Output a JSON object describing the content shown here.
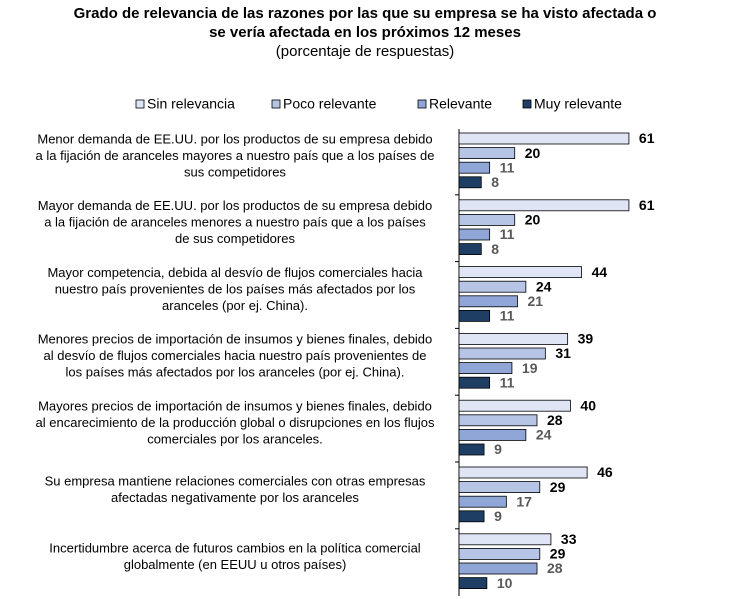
{
  "chart_data": {
    "type": "hbar",
    "title": [
      "Grado de relevancia de las razones por las que su empresa se ha visto afectada o",
      "se vería afectada en los próximos 12 meses"
    ],
    "subtitle": "(porcentaje de respuestas)",
    "categories": [
      [
        "Menor demanda de EE.UU. por los productos de su empresa debido",
        "a la fijación de aranceles mayores a nuestro país que a los países de",
        "sus competidores"
      ],
      [
        "Mayor demanda de EE.UU. por los productos de su empresa debido",
        "a la fijación de aranceles menores a nuestro país que a los países",
        "de sus competidores"
      ],
      [
        "Mayor competencia, debida al desvío de flujos comerciales hacia",
        "nuestro país provenientes de los países más afectados por los",
        "aranceles (por ej. China)."
      ],
      [
        "Menores precios de importación de insumos y bienes finales, debido",
        "al desvío de flujos comerciales hacia nuestro país provenientes de",
        "los países más afectados por los aranceles (por ej. China)."
      ],
      [
        "Mayores precios de importación de insumos y bienes finales, debido",
        "al encarecimiento de la producción global o disrupciones en los flujos",
        "comerciales por los aranceles."
      ],
      [
        "Su empresa mantiene relaciones comerciales con otras empresas",
        "afectadas negativamente por los aranceles"
      ],
      [
        "Incertidumbre acerca de futuros cambios en la política comercial",
        "globalmente (en EEUU u otros países)"
      ]
    ],
    "series": [
      {
        "name": "Sin relevancia",
        "color": "#dfe5f4",
        "label_color": "#000000",
        "values": [
          61,
          61,
          44,
          39,
          40,
          46,
          33
        ]
      },
      {
        "name": "Poco relevante",
        "color": "#b6c4e6",
        "label_color": "#000000",
        "values": [
          20,
          20,
          24,
          31,
          28,
          29,
          29
        ]
      },
      {
        "name": "Relevante",
        "color": "#8fa6d7",
        "label_color": "#595959",
        "values": [
          11,
          11,
          21,
          19,
          24,
          17,
          28
        ]
      },
      {
        "name": "Muy relevante",
        "color": "#1f3e64",
        "label_color": "#595959",
        "values": [
          8,
          8,
          11,
          11,
          9,
          9,
          10
        ]
      }
    ],
    "xlim": [
      0,
      70
    ]
  }
}
